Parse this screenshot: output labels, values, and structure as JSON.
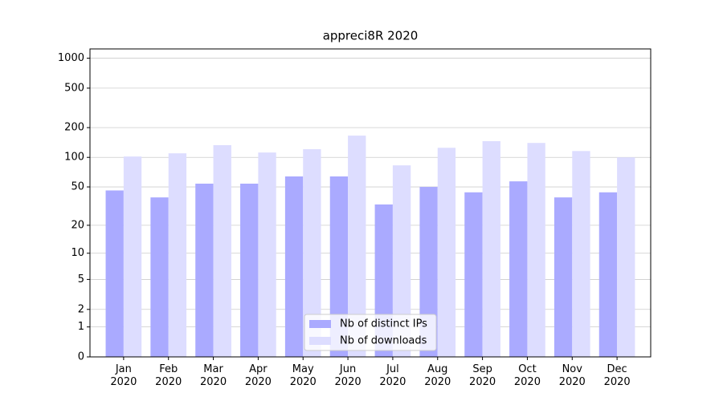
{
  "chart_data": {
    "type": "bar",
    "title": "appreci8R 2020",
    "categories": [
      "Jan 2020",
      "Feb 2020",
      "Mar 2020",
      "Apr 2020",
      "May 2020",
      "Jun 2020",
      "Jul 2020",
      "Aug 2020",
      "Sep 2020",
      "Oct 2020",
      "Nov 2020",
      "Dec 2020"
    ],
    "series": [
      {
        "name": "Nb of distinct IPs",
        "color": "#aaaaff",
        "values": [
          46,
          39,
          54,
          54,
          64,
          64,
          33,
          50,
          44,
          57,
          39,
          44
        ]
      },
      {
        "name": "Nb of downloads",
        "color": "#ddddff",
        "values": [
          102,
          110,
          133,
          112,
          121,
          166,
          83,
          125,
          146,
          140,
          116,
          100
        ]
      }
    ],
    "yscale": "log1p",
    "ylim": [
      0,
      1240
    ],
    "yticks": [
      0,
      1,
      2,
      5,
      10,
      20,
      50,
      100,
      200,
      500,
      1000
    ],
    "grid": true,
    "legend": "lower center"
  }
}
